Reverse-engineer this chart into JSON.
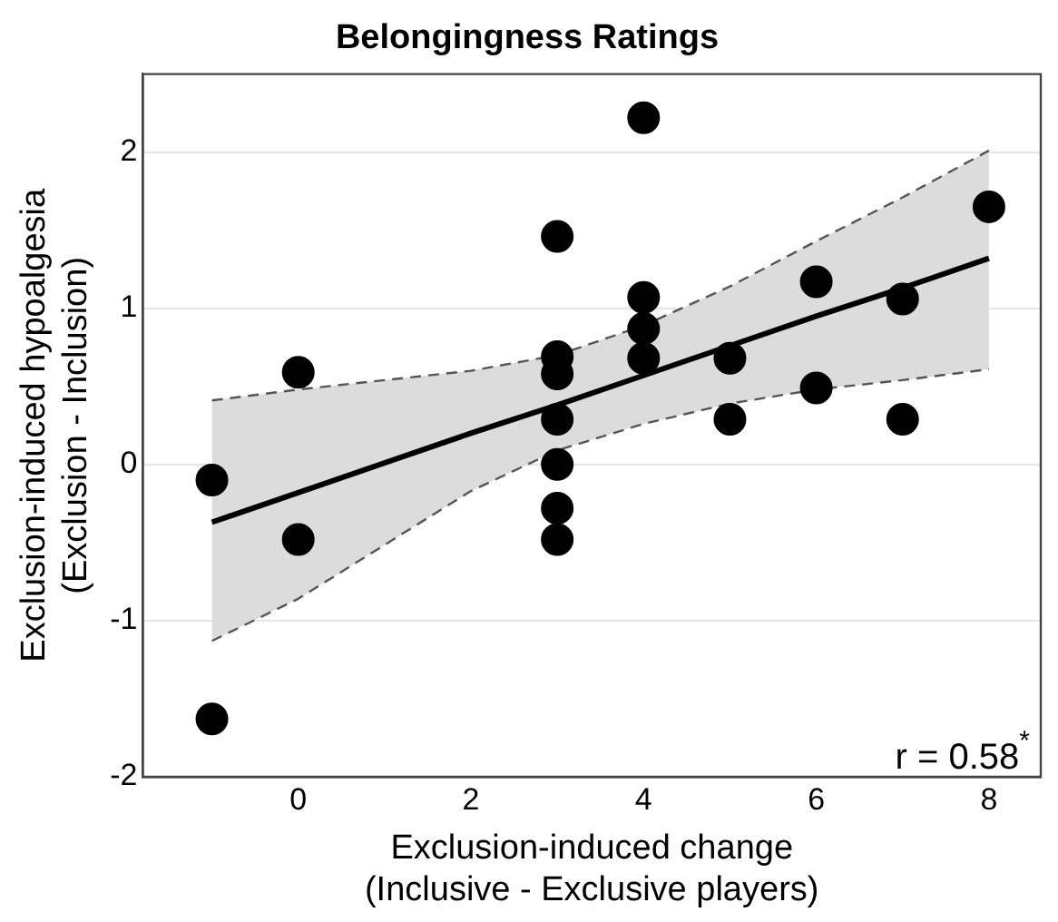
{
  "chart_data": {
    "type": "scatter",
    "title": "Belongingness Ratings",
    "xlabel": "Exclusion-induced change\n(Inclusive - Exclusive players)",
    "ylabel": "Exclusion-induced hypoalgesia\n(Exclusion - Inclusion)",
    "series": [
      {
        "color": "#000000",
        "marker": "circle",
        "x": [
          -1,
          -1,
          0,
          0,
          3,
          3,
          3,
          3,
          3,
          3,
          3,
          4,
          4,
          4,
          4,
          5,
          5,
          6,
          6,
          7,
          7,
          8
        ],
        "values": [
          -0.1,
          -1.63,
          0.59,
          -0.48,
          1.46,
          0.69,
          0.58,
          0.29,
          0,
          -0.28,
          -0.48,
          2.22,
          1.07,
          0.87,
          0.68,
          0.68,
          0.29,
          1.17,
          0.49,
          1.06,
          0.29,
          1.65
        ]
      },
      {
        "type": "line",
        "color": "#000000",
        "marker": "none",
        "line_style": "solid",
        "x": [
          -1,
          0,
          2,
          3,
          4,
          5,
          6,
          7,
          8
        ],
        "values": [
          -0.37,
          -0.18,
          0.2,
          0.38,
          0.57,
          0.76,
          0.95,
          1.13,
          1.32
        ],
        "lower": [
          -1.13,
          -0.86,
          -0.17,
          0.09,
          0.26,
          0.39,
          0.48,
          0.54,
          0.61
        ],
        "upper": [
          0.41,
          0.48,
          0.6,
          0.7,
          0.89,
          1.14,
          1.43,
          1.71,
          2.01
        ]
      },
      {
        "type": "line",
        "color": "#555555",
        "marker": "none",
        "line_style": "dashed",
        "x": [
          -1,
          0,
          2,
          3,
          4,
          5,
          6,
          7,
          8
        ],
        "values": [
          -1.13,
          -0.86,
          -0.17,
          0.09,
          0.26,
          0.39,
          0.48,
          0.54,
          0.61
        ]
      },
      {
        "type": "line",
        "color": "#555555",
        "marker": "none",
        "line_style": "dashed",
        "x": [
          -1,
          0,
          2,
          3,
          4,
          5,
          6,
          7,
          8
        ],
        "values": [
          0.41,
          0.48,
          0.6,
          0.7,
          0.89,
          1.14,
          1.43,
          1.71,
          2.01
        ]
      }
    ],
    "xlim": [
      -1.8,
      8.6
    ],
    "ylim": [
      -2,
      2.5
    ],
    "xticks": [
      0,
      2,
      4,
      6,
      8
    ],
    "yticks": [
      -2,
      -1,
      0,
      1,
      2
    ],
    "grid": "y",
    "legend": false,
    "annotations": [
      "r = 0.58$^{*}$"
    ]
  }
}
